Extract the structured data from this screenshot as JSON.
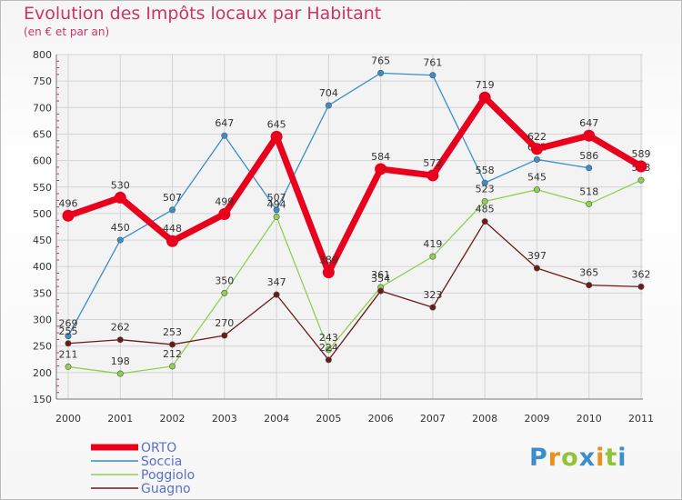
{
  "chart_data": {
    "type": "line",
    "title": "Evolution des Impôts locaux par Habitant",
    "subtitle": "(en € et par an)",
    "categories": [
      "2000",
      "2001",
      "2002",
      "2003",
      "2004",
      "2005",
      "2006",
      "2007",
      "2008",
      "2009",
      "2010",
      "2011"
    ],
    "ylim": [
      150,
      800
    ],
    "yticks": [
      150,
      200,
      250,
      300,
      350,
      400,
      450,
      500,
      550,
      600,
      650,
      700,
      750,
      800
    ],
    "series": [
      {
        "name": "ORTO",
        "color": "#e8001c",
        "values": [
          496,
          530,
          448,
          499,
          645,
          389,
          584,
          572,
          719,
          622,
          647,
          589
        ]
      },
      {
        "name": "Soccia",
        "color": "#3b8ec9",
        "values": [
          269,
          450,
          507,
          647,
          507,
          704,
          765,
          761,
          558,
          602,
          586,
          null
        ]
      },
      {
        "name": "Poggiolo",
        "color": "#8fd14f",
        "values": [
          211,
          198,
          212,
          350,
          494,
          243,
          361,
          419,
          523,
          545,
          518,
          563
        ]
      },
      {
        "name": "Guagno",
        "color": "#6b1a1a",
        "values": [
          255,
          262,
          253,
          270,
          347,
          224,
          354,
          323,
          485,
          397,
          365,
          362
        ]
      }
    ]
  },
  "logo": {
    "letters": [
      "P",
      "r",
      "o",
      "x",
      "i",
      "t",
      "i"
    ],
    "colors": [
      "#3b8ec9",
      "#f08c1a",
      "#8fc43a",
      "#3b8ec9",
      "#f08c1a",
      "#8fc43a",
      "#3b8ec9"
    ]
  }
}
